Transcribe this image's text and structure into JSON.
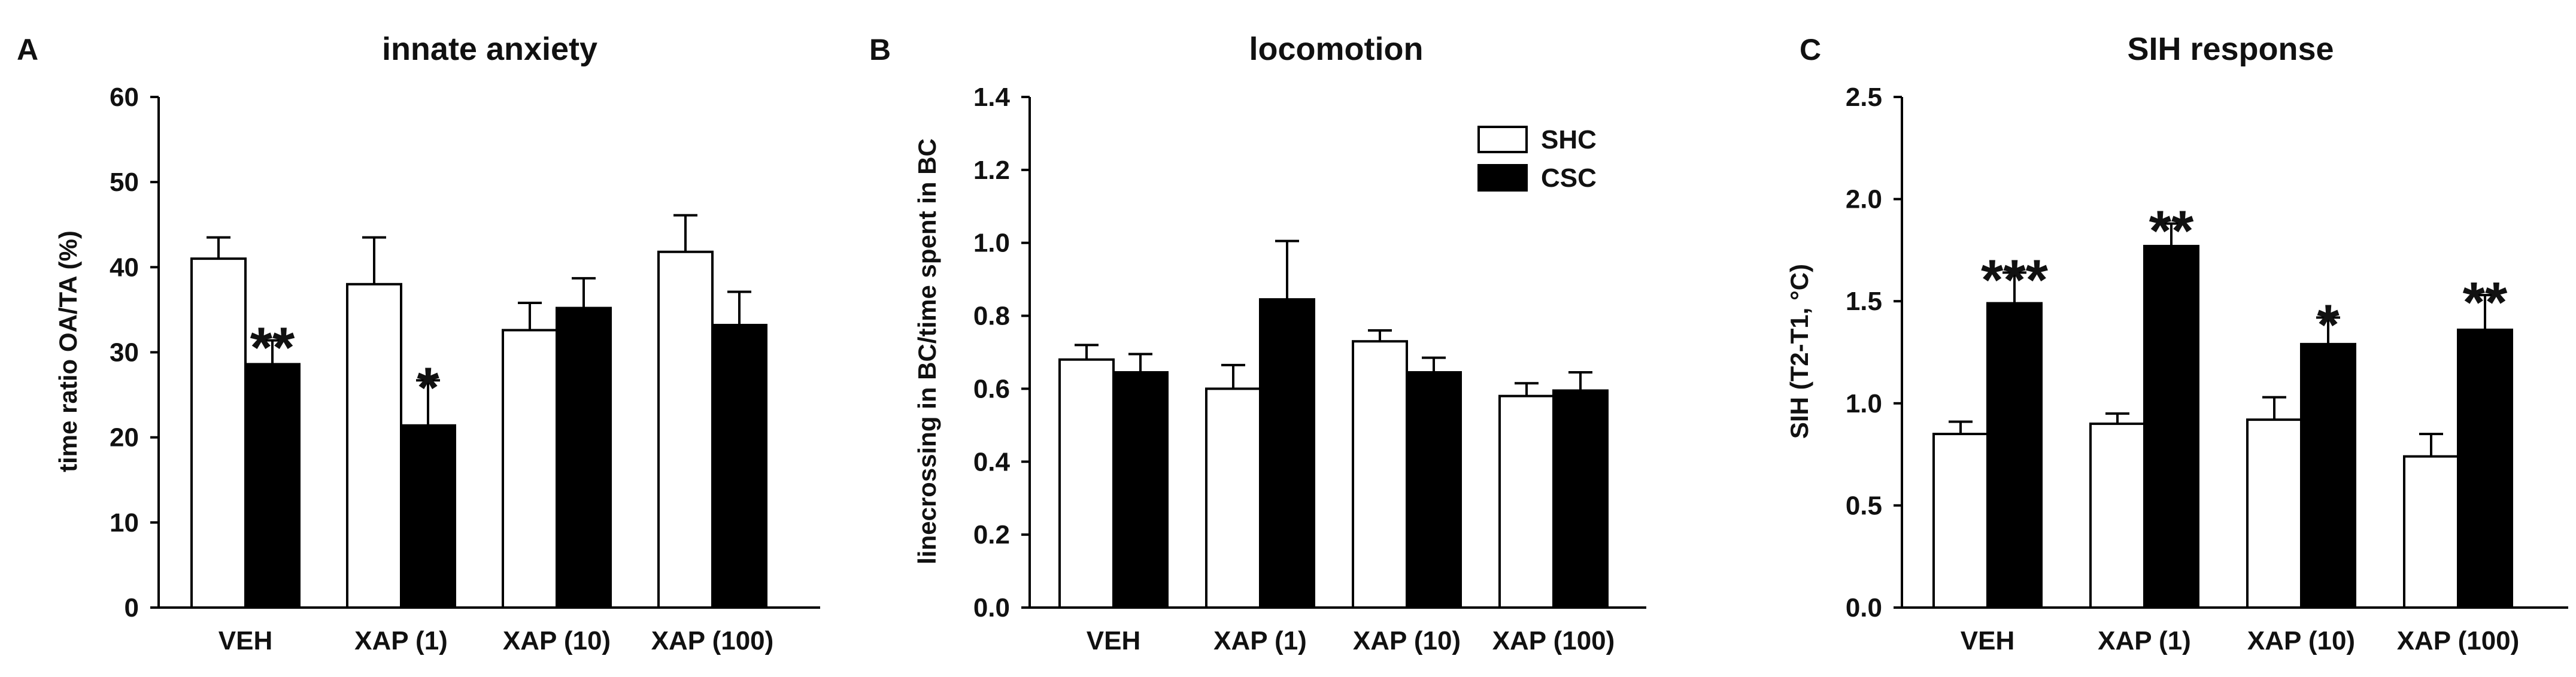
{
  "chart_data": [
    {
      "type": "bar",
      "panel": "A",
      "title": "innate anxiety",
      "xlabel": "",
      "ylabel": "time ratio OA/TA (%)",
      "ylim": [
        0,
        60
      ],
      "yticks": [
        "0",
        "10",
        "20",
        "30",
        "40",
        "50",
        "60"
      ],
      "categories": [
        "VEH",
        "XAP (1)",
        "XAP (10)",
        "XAP (100)"
      ],
      "series": [
        {
          "name": "SHC",
          "fill": "#ffffff",
          "values": [
            41.0,
            38.0,
            32.6,
            41.8
          ],
          "errors": [
            2.5,
            5.5,
            3.2,
            4.3
          ]
        },
        {
          "name": "CSC",
          "fill": "#000000",
          "values": [
            28.6,
            21.4,
            35.2,
            33.2
          ],
          "errors": [
            2.8,
            5.3,
            3.5,
            3.9
          ]
        }
      ],
      "significance": [
        {
          "category": "VEH",
          "series": "CSC",
          "label": "**"
        },
        {
          "category": "XAP (1)",
          "series": "CSC",
          "label": "*"
        }
      ]
    },
    {
      "type": "bar",
      "panel": "B",
      "title": "locomotion",
      "xlabel": "",
      "ylabel": "linecrossing in BC/time spent in BC",
      "ylim": [
        0,
        1.4
      ],
      "yticks": [
        "0.0",
        "0.2",
        "0.4",
        "0.6",
        "0.8",
        "1.0",
        "1.2",
        "1.4"
      ],
      "categories": [
        "VEH",
        "XAP (1)",
        "XAP (10)",
        "XAP (100)"
      ],
      "series": [
        {
          "name": "SHC",
          "fill": "#ffffff",
          "values": [
            0.68,
            0.6,
            0.73,
            0.58
          ],
          "errors": [
            0.04,
            0.065,
            0.03,
            0.035
          ]
        },
        {
          "name": "CSC",
          "fill": "#000000",
          "values": [
            0.645,
            0.845,
            0.645,
            0.595
          ],
          "errors": [
            0.05,
            0.16,
            0.04,
            0.05
          ]
        }
      ],
      "legend": {
        "position": "top-right",
        "entries": [
          "SHC",
          "CSC"
        ]
      },
      "significance": []
    },
    {
      "type": "bar",
      "panel": "C",
      "title": "SIH response",
      "xlabel": "",
      "ylabel": "SIH (T2-T1, °C)",
      "ylim": [
        0,
        2.5
      ],
      "yticks": [
        "0.0",
        "0.5",
        "1.0",
        "1.5",
        "2.0",
        "2.5"
      ],
      "categories": [
        "VEH",
        "XAP (1)",
        "XAP (10)",
        "XAP (100)"
      ],
      "series": [
        {
          "name": "SHC",
          "fill": "#ffffff",
          "values": [
            0.85,
            0.9,
            0.92,
            0.74
          ],
          "errors": [
            0.06,
            0.05,
            0.11,
            0.11
          ]
        },
        {
          "name": "CSC",
          "fill": "#000000",
          "values": [
            1.49,
            1.77,
            1.29,
            1.36
          ],
          "errors": [
            0.15,
            0.11,
            0.13,
            0.17
          ]
        }
      ],
      "significance": [
        {
          "category": "VEH",
          "series": "CSC",
          "label": "***"
        },
        {
          "category": "XAP (1)",
          "series": "CSC",
          "label": "**"
        },
        {
          "category": "XAP (10)",
          "series": "CSC",
          "label": "*"
        },
        {
          "category": "XAP (100)",
          "series": "CSC",
          "label": "**"
        }
      ]
    }
  ]
}
